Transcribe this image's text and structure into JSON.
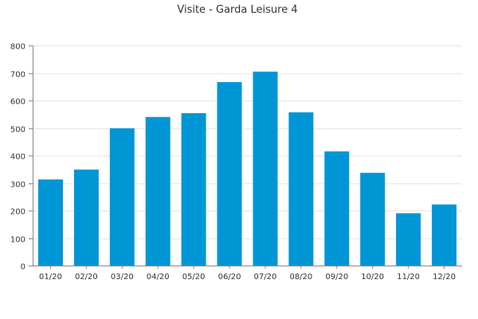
{
  "chart_data": {
    "type": "bar",
    "title": "Visite - Garda Leisure 4",
    "xlabel": "",
    "ylabel": "",
    "categories": [
      "01/20",
      "02/20",
      "03/20",
      "04/20",
      "05/20",
      "06/20",
      "07/20",
      "08/20",
      "09/20",
      "10/20",
      "11/20",
      "12/20"
    ],
    "values": [
      313,
      349,
      499,
      540,
      554,
      667,
      705,
      557,
      415,
      337,
      190,
      222
    ],
    "ylim": [
      0,
      800
    ],
    "yticks": [
      0,
      100,
      200,
      300,
      400,
      500,
      600,
      700,
      800
    ],
    "grid": true,
    "legend": "none",
    "bar_color": "#0096D6"
  }
}
